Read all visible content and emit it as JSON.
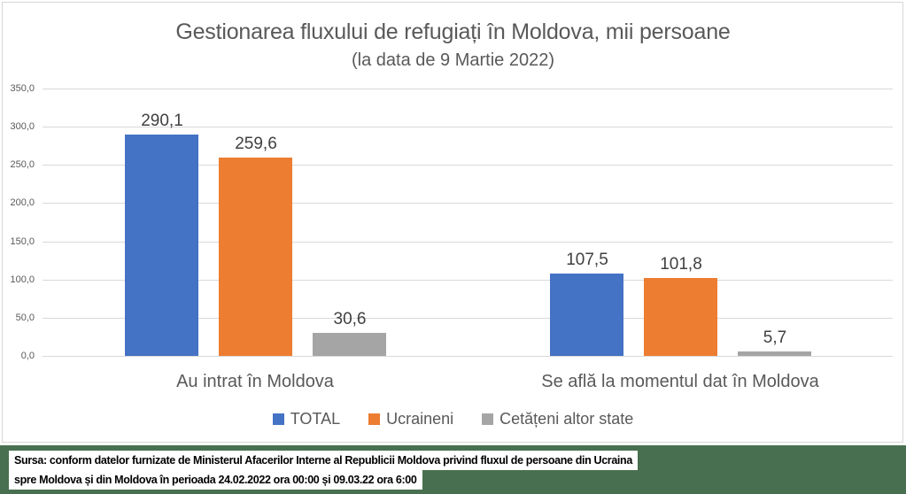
{
  "title": "Gestionarea fluxului de refugiați în Moldova, mii persoane",
  "subtitle": "(la data de 9 Martie 2022)",
  "chart_data": {
    "type": "bar",
    "categories": [
      "Au intrat în Moldova",
      "Se află la momentul dat în Moldova"
    ],
    "series": [
      {
        "name": "TOTAL",
        "color": "#4472C4",
        "values": [
          290.1,
          107.5
        ],
        "value_labels": [
          "290,1",
          "107,5"
        ]
      },
      {
        "name": "Ucraineni",
        "color": "#ED7D31",
        "values": [
          259.6,
          101.8
        ],
        "value_labels": [
          "259,6",
          "101,8"
        ]
      },
      {
        "name": "Cetățeni altor state",
        "color": "#A5A5A5",
        "values": [
          30.6,
          5.7
        ],
        "value_labels": [
          "30,6",
          "5,7"
        ]
      }
    ],
    "ylim": [
      0,
      350
    ],
    "yticks": [
      {
        "value": 0,
        "label": "0,0"
      },
      {
        "value": 50,
        "label": "50,0"
      },
      {
        "value": 100,
        "label": "100,0"
      },
      {
        "value": 150,
        "label": "150,0"
      },
      {
        "value": 200,
        "label": "200,0"
      },
      {
        "value": 250,
        "label": "250,0"
      },
      {
        "value": 300,
        "label": "300,0"
      },
      {
        "value": 350,
        "label": "350,0"
      }
    ],
    "grid": true,
    "legend_position": "bottom"
  },
  "colors": {
    "gridline": "#D9D9D9",
    "axis_text": "#595959",
    "title_text": "#595959",
    "data_label_text": "#404040",
    "footer_background": "#487050",
    "footer_text": "#000000",
    "footer_highlight": "#FFFFFF"
  },
  "footer": {
    "line1": "Sursa: conform datelor furnizate de Ministerul Afacerilor Interne al Republicii Moldova privind fluxul de persoane din Ucraina",
    "line2": "spre Moldova și din Moldova în perioada 24.02.2022 ora 00:00 și 09.03.22 ora 6:00"
  }
}
